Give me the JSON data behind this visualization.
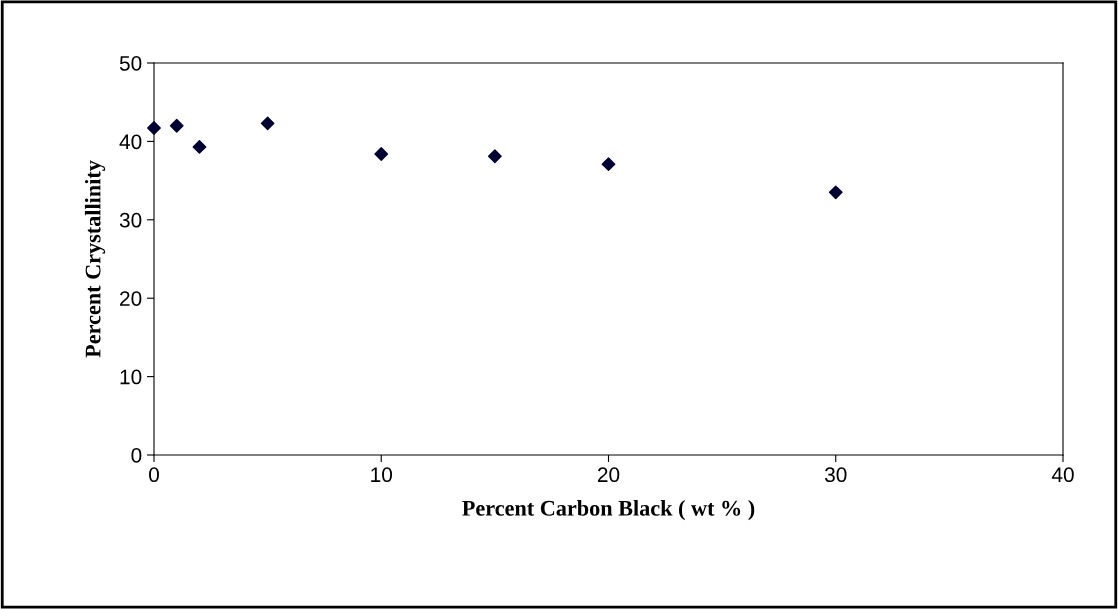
{
  "chart_data": {
    "type": "scatter",
    "xlabel": "Percent Carbon Black ( wt % )",
    "ylabel": "Percent Crystallinity",
    "x": [
      0,
      1,
      2,
      5,
      10,
      15,
      20,
      30
    ],
    "series": [
      {
        "color": "#000033",
        "values": [
          41.7,
          42.0,
          39.3,
          42.3,
          38.4,
          38.1,
          37.1,
          33.5
        ]
      }
    ],
    "xlim": [
      0,
      40
    ],
    "xticks": [
      0,
      10,
      20,
      30,
      40
    ],
    "ylim": [
      0,
      50
    ],
    "yticks": [
      0,
      10,
      20,
      30,
      40,
      50
    ],
    "marker": "diamond",
    "grid": false,
    "legend": false
  }
}
